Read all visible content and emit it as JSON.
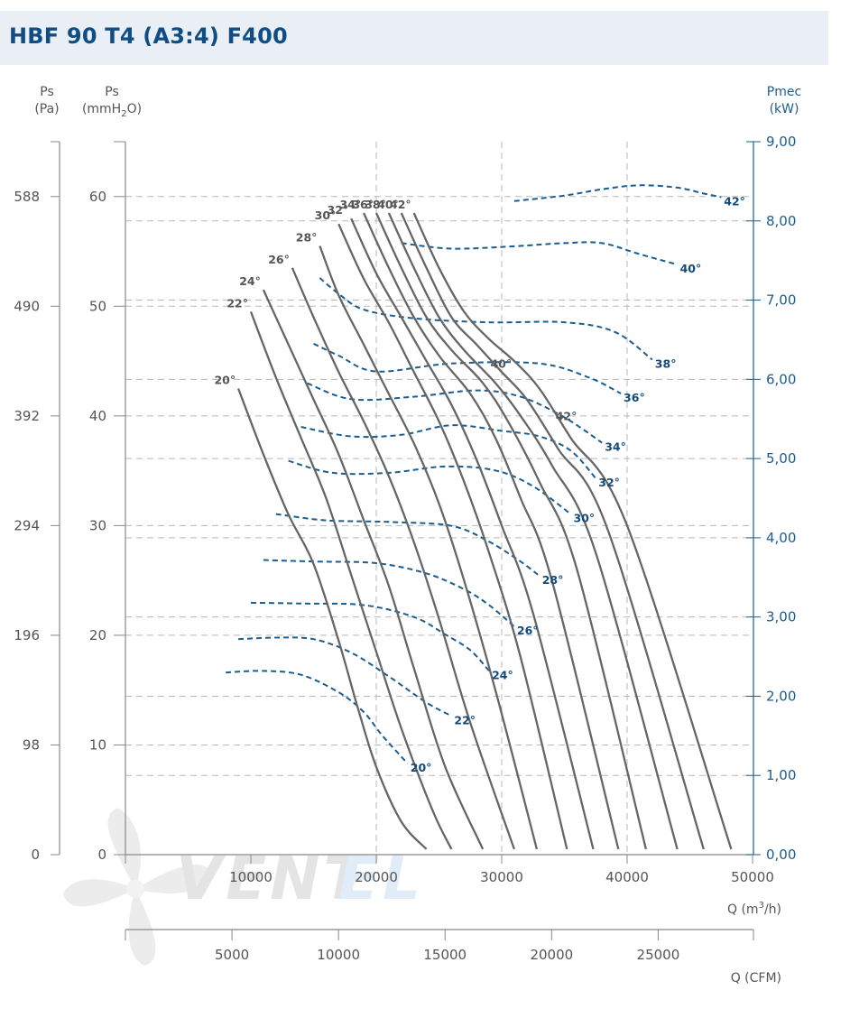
{
  "title": "HBF 90 T4 (A3:4) F400",
  "logo": {
    "text_dark": "VENT",
    "text_light": "EL",
    "color_dark": "#e4e4e4",
    "color_light": "#e0ecf7"
  },
  "axes": {
    "left_pa": {
      "label": "Ps",
      "unit": "(Pa)",
      "ticks": [
        "588",
        "490",
        "392",
        "294",
        "196",
        "98",
        "0"
      ]
    },
    "left_mm": {
      "label": "Ps",
      "unit_prefix": "(mmH",
      "unit_sub": "2",
      "unit_suffix": "O)",
      "ticks": [
        "60",
        "50",
        "40",
        "30",
        "20",
        "10",
        "0"
      ]
    },
    "right_kw": {
      "label": "Pmec",
      "unit": "(kW)",
      "ticks": [
        "9,00",
        "8,00",
        "7,00",
        "6,00",
        "5,00",
        "4,00",
        "3,00",
        "2,00",
        "1,00",
        "0,00"
      ]
    },
    "bottom_m3h": {
      "ticks": [
        "10000",
        "20000",
        "30000",
        "40000",
        "50000"
      ],
      "label_prefix": "Q (m",
      "label_sup": "3",
      "label_suffix": "/h)"
    },
    "bottom_cfm": {
      "ticks": [
        "5000",
        "10000",
        "15000",
        "20000",
        "25000"
      ],
      "label": "Q (CFM)"
    }
  },
  "colors": {
    "pressure_curve": "#666666",
    "power_curve": "#1a5d91",
    "grid": "#b4b4b4",
    "title": "#0f4e85",
    "right_axis": "#1c5c8c"
  },
  "chart_data": {
    "type": "line",
    "title": "HBF 90 T4 (A3:4) F400",
    "xlabel": "Q (m3/h)",
    "ylabel": "Ps (mmH2O)",
    "y2label": "Pmec (kW)",
    "xlim": [
      0,
      50000
    ],
    "ylim": [
      0,
      65
    ],
    "y2lim": [
      0,
      9
    ],
    "pressure_series": [
      {
        "name": "20°",
        "label": "20°",
        "points": [
          [
            9000,
            42.5
          ],
          [
            11000,
            36.5
          ],
          [
            13000,
            31
          ],
          [
            15000,
            26.5
          ],
          [
            17000,
            19.5
          ],
          [
            18500,
            13.5
          ],
          [
            20000,
            8
          ],
          [
            22000,
            3
          ],
          [
            24000,
            0.5
          ]
        ]
      },
      {
        "name": "22°",
        "label": "22°",
        "points": [
          [
            10000,
            49.5
          ],
          [
            12000,
            43.5
          ],
          [
            14000,
            38
          ],
          [
            16000,
            32.5
          ],
          [
            18000,
            25.5
          ],
          [
            20000,
            18.5
          ],
          [
            22000,
            11.5
          ],
          [
            24500,
            4
          ],
          [
            26000,
            0.5
          ]
        ]
      },
      {
        "name": "24°",
        "label": "24°",
        "points": [
          [
            11000,
            51.5
          ],
          [
            13000,
            46.5
          ],
          [
            15000,
            41.5
          ],
          [
            17000,
            36.5
          ],
          [
            19000,
            30.5
          ],
          [
            21000,
            24.5
          ],
          [
            23000,
            17
          ],
          [
            25500,
            8
          ],
          [
            28500,
            0.5
          ]
        ]
      },
      {
        "name": "26°",
        "label": "26°",
        "points": [
          [
            13300,
            53.5
          ],
          [
            15000,
            49
          ],
          [
            17000,
            44
          ],
          [
            19000,
            39.5
          ],
          [
            21000,
            34.5
          ],
          [
            23000,
            28.5
          ],
          [
            25000,
            21.5
          ],
          [
            27500,
            12
          ],
          [
            31000,
            0.5
          ]
        ]
      },
      {
        "name": "28°",
        "label": "28°",
        "points": [
          [
            15500,
            55.5
          ],
          [
            17000,
            51
          ],
          [
            19000,
            46.5
          ],
          [
            21000,
            42
          ],
          [
            23000,
            37.5
          ],
          [
            25000,
            32
          ],
          [
            27000,
            25
          ],
          [
            29500,
            15
          ],
          [
            32800,
            0.5
          ]
        ]
      },
      {
        "name": "30°",
        "label": "30°",
        "points": [
          [
            17000,
            57.5
          ],
          [
            19000,
            52.5
          ],
          [
            21000,
            48.5
          ],
          [
            23000,
            44
          ],
          [
            25000,
            39.5
          ],
          [
            27000,
            34
          ],
          [
            29000,
            27.5
          ],
          [
            31500,
            18
          ],
          [
            35200,
            0.5
          ]
        ]
      },
      {
        "name": "32°",
        "label": "32°",
        "points": [
          [
            18000,
            58
          ],
          [
            20000,
            53
          ],
          [
            22000,
            49
          ],
          [
            24000,
            45
          ],
          [
            26000,
            41
          ],
          [
            28000,
            36
          ],
          [
            30000,
            30
          ],
          [
            32500,
            22
          ],
          [
            37300,
            0.5
          ]
        ]
      },
      {
        "name": "34°",
        "label": "34°",
        "points": [
          [
            19000,
            58.5
          ],
          [
            21000,
            53.5
          ],
          [
            23000,
            49
          ],
          [
            25000,
            45.5
          ],
          [
            27500,
            42
          ],
          [
            29500,
            38
          ],
          [
            31500,
            32.5
          ],
          [
            34000,
            25
          ],
          [
            39300,
            0.5
          ]
        ]
      },
      {
        "name": "36°",
        "label": "36°",
        "points": [
          [
            20000,
            58.5
          ],
          [
            22000,
            53.5
          ],
          [
            24000,
            49
          ],
          [
            26000,
            46
          ],
          [
            28500,
            43
          ],
          [
            30500,
            39.5
          ],
          [
            33000,
            34
          ],
          [
            36000,
            26
          ],
          [
            41500,
            0.5
          ]
        ]
      },
      {
        "name": "38°",
        "label": "38°",
        "points": [
          [
            21000,
            58.5
          ],
          [
            23000,
            53.5
          ],
          [
            25000,
            49
          ],
          [
            27000,
            46
          ],
          [
            29500,
            43
          ],
          [
            31500,
            40
          ],
          [
            34000,
            35.5
          ],
          [
            37500,
            27.5
          ],
          [
            44000,
            0.5
          ]
        ]
      },
      {
        "name": "40°",
        "label": "40°",
        "points": [
          [
            22000,
            58.5
          ],
          [
            24000,
            53.5
          ],
          [
            26000,
            49
          ],
          [
            28000,
            46.5
          ],
          [
            30000,
            44
          ],
          [
            32000,
            41.5
          ],
          [
            34500,
            37
          ],
          [
            38500,
            29.5
          ],
          [
            46100,
            0.5
          ]
        ]
      },
      {
        "name": "42°",
        "label": "42°",
        "points": [
          [
            23000,
            58.5
          ],
          [
            25000,
            53.5
          ],
          [
            27000,
            49.5
          ],
          [
            29000,
            47
          ],
          [
            31000,
            45
          ],
          [
            33000,
            42.5
          ],
          [
            35500,
            38
          ],
          [
            40000,
            30
          ],
          [
            48300,
            0.5
          ]
        ]
      }
    ],
    "power_series": [
      {
        "name": "20°",
        "label": "20°",
        "points": [
          [
            8000,
            2.3
          ],
          [
            11000,
            2.32
          ],
          [
            14000,
            2.27
          ],
          [
            17000,
            2.05
          ],
          [
            19000,
            1.8
          ],
          [
            20500,
            1.5
          ],
          [
            22500,
            1.15
          ]
        ]
      },
      {
        "name": "22°",
        "label": "22°",
        "points": [
          [
            9000,
            2.72
          ],
          [
            12000,
            2.74
          ],
          [
            15000,
            2.72
          ],
          [
            18000,
            2.55
          ],
          [
            21000,
            2.25
          ],
          [
            24000,
            1.92
          ],
          [
            26000,
            1.75
          ]
        ]
      },
      {
        "name": "24°",
        "label": "24°",
        "points": [
          [
            10000,
            3.18
          ],
          [
            14000,
            3.17
          ],
          [
            19000,
            3.15
          ],
          [
            23000,
            3.0
          ],
          [
            25500,
            2.78
          ],
          [
            27500,
            2.58
          ],
          [
            29000,
            2.32
          ]
        ]
      },
      {
        "name": "26°",
        "label": "26°",
        "points": [
          [
            11000,
            3.72
          ],
          [
            15000,
            3.7
          ],
          [
            20000,
            3.68
          ],
          [
            24000,
            3.55
          ],
          [
            27000,
            3.35
          ],
          [
            29000,
            3.15
          ],
          [
            31000,
            2.88
          ]
        ]
      },
      {
        "name": "28°",
        "label": "28°",
        "points": [
          [
            12000,
            4.3
          ],
          [
            16000,
            4.22
          ],
          [
            21000,
            4.2
          ],
          [
            26000,
            4.15
          ],
          [
            29000,
            3.95
          ],
          [
            31500,
            3.7
          ],
          [
            33000,
            3.52
          ]
        ]
      },
      {
        "name": "30°",
        "label": "30°",
        "points": [
          [
            13000,
            4.97
          ],
          [
            16500,
            4.82
          ],
          [
            21000,
            4.82
          ],
          [
            25500,
            4.9
          ],
          [
            29500,
            4.85
          ],
          [
            32500,
            4.65
          ],
          [
            35500,
            4.3
          ]
        ]
      },
      {
        "name": "32°",
        "label": "32°",
        "points": [
          [
            14000,
            5.4
          ],
          [
            18000,
            5.28
          ],
          [
            22000,
            5.3
          ],
          [
            26000,
            5.42
          ],
          [
            30000,
            5.35
          ],
          [
            33000,
            5.28
          ],
          [
            35500,
            5.1
          ],
          [
            37500,
            4.75
          ]
        ]
      },
      {
        "name": "34°",
        "label": "34°",
        "points": [
          [
            14500,
            5.95
          ],
          [
            18000,
            5.75
          ],
          [
            23000,
            5.78
          ],
          [
            28000,
            5.86
          ],
          [
            31500,
            5.78
          ],
          [
            35000,
            5.52
          ],
          [
            38000,
            5.2
          ]
        ]
      },
      {
        "name": "36°",
        "label": "36°",
        "points": [
          [
            15000,
            6.45
          ],
          [
            17000,
            6.3
          ],
          [
            20000,
            6.1
          ],
          [
            26000,
            6.2
          ],
          [
            33000,
            6.2
          ],
          [
            37000,
            6.02
          ],
          [
            39500,
            5.82
          ]
        ]
      },
      {
        "name": "38°",
        "label": "38°",
        "points": [
          [
            15500,
            7.28
          ],
          [
            17000,
            7.08
          ],
          [
            19000,
            6.88
          ],
          [
            23000,
            6.77
          ],
          [
            29000,
            6.72
          ],
          [
            35000,
            6.72
          ],
          [
            39000,
            6.6
          ],
          [
            42000,
            6.25
          ]
        ]
      },
      {
        "name": "40°",
        "label": "40°",
        "points": [
          [
            22000,
            7.72
          ],
          [
            26000,
            7.65
          ],
          [
            31000,
            7.68
          ],
          [
            35000,
            7.72
          ],
          [
            38000,
            7.72
          ],
          [
            41000,
            7.58
          ],
          [
            44000,
            7.45
          ]
        ]
      },
      {
        "name": "42°",
        "label": "42°",
        "points": [
          [
            31000,
            8.25
          ],
          [
            35000,
            8.32
          ],
          [
            38000,
            8.4
          ],
          [
            41000,
            8.45
          ],
          [
            44000,
            8.42
          ],
          [
            46000,
            8.35
          ],
          [
            47500,
            8.3
          ]
        ]
      }
    ]
  }
}
